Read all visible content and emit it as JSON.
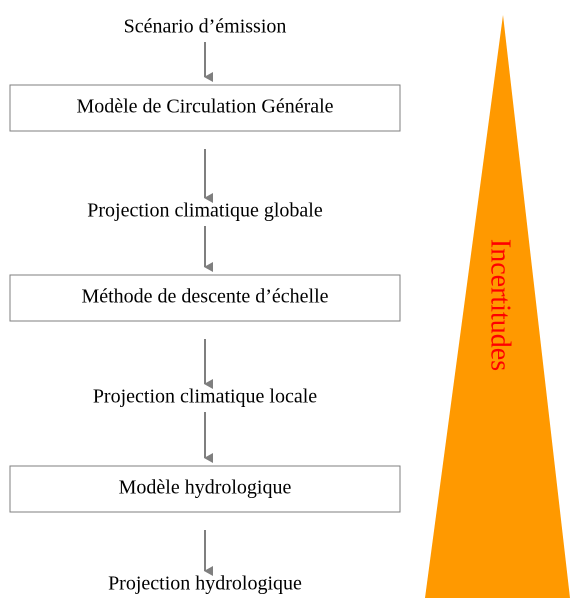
{
  "steps": [
    {
      "label": "Scénario d’émission",
      "boxed": false
    },
    {
      "label": "Modèle de Circulation Générale",
      "boxed": true
    },
    {
      "label": "Projection climatique globale",
      "boxed": false
    },
    {
      "label": "Méthode de descente d’échelle",
      "boxed": true
    },
    {
      "label": "Projection climatique locale",
      "boxed": false
    },
    {
      "label": "Modèle hydrologique",
      "boxed": true
    },
    {
      "label": "Projection hydrologique",
      "boxed": false
    }
  ],
  "side_label": "Incertitudes"
}
